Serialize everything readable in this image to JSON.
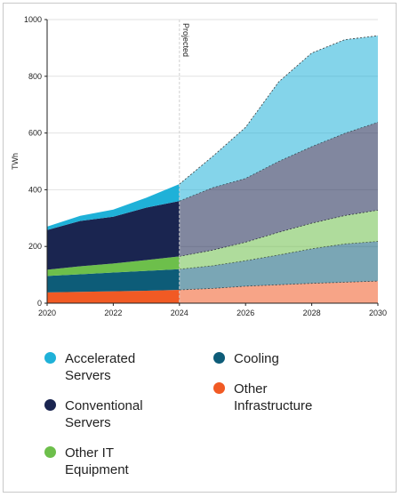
{
  "chart_data": {
    "type": "area",
    "stacked": true,
    "ylabel": "TWh",
    "projected_label": "Projected",
    "projected_from": 2024,
    "x": [
      2020,
      2021,
      2022,
      2023,
      2024,
      2025,
      2026,
      2027,
      2028,
      2029,
      2030
    ],
    "xticks": [
      "2020",
      "2022",
      "2024",
      "2026",
      "2028",
      "2030"
    ],
    "ylim": [
      0,
      1000
    ],
    "yticks": [
      "0",
      "200",
      "400",
      "600",
      "800",
      "1000"
    ],
    "series": [
      {
        "name": "Other Infrastructure",
        "color": "#f15a24",
        "values": [
          38,
          40,
          42,
          44,
          47,
          52,
          60,
          65,
          70,
          74,
          78
        ]
      },
      {
        "name": "Cooling",
        "color": "#0d5c78",
        "values": [
          58,
          62,
          66,
          70,
          73,
          80,
          90,
          105,
          122,
          135,
          140
        ]
      },
      {
        "name": "Other IT Equipment",
        "color": "#6dbf4b",
        "values": [
          22,
          28,
          32,
          38,
          45,
          55,
          65,
          80,
          90,
          100,
          110
        ]
      },
      {
        "name": "Conventional Servers",
        "color": "#1a2550",
        "values": [
          140,
          160,
          165,
          185,
          195,
          220,
          225,
          250,
          270,
          290,
          310
        ]
      },
      {
        "name": "Accelerated Servers",
        "color": "#1fb1d8",
        "values": [
          12,
          18,
          25,
          35,
          60,
          110,
          180,
          280,
          330,
          330,
          305
        ]
      }
    ]
  },
  "legend": [
    {
      "label": "Accelerated\nServers",
      "color": "#1fb1d8"
    },
    {
      "label": "Cooling",
      "color": "#0d5c78"
    },
    {
      "label": "Conventional\nServers",
      "color": "#1a2550"
    },
    {
      "label": "Other\nInfrastructure",
      "color": "#f15a24"
    },
    {
      "label": "Other IT\nEquipment",
      "color": "#6dbf4b"
    }
  ]
}
